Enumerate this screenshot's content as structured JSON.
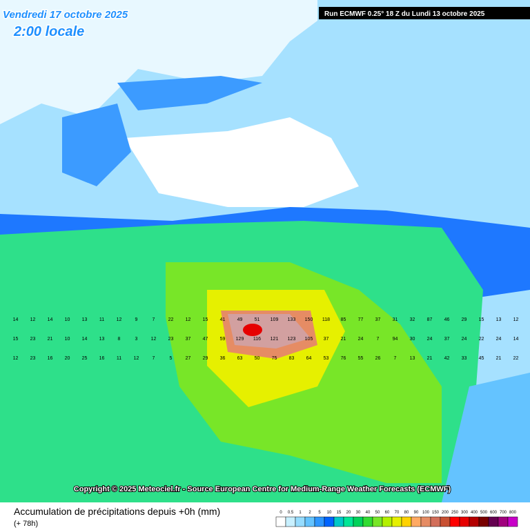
{
  "header": {
    "date": "Vendredi 17 octobre 2025",
    "local_time": "2:00 locale",
    "run": "Run ECMWF 0.25° 18 Z du Lundi 13 octobre 2025"
  },
  "copyright": "Copyright © 2025 Meteociel.fr - Source European Centre for Medium-Range Weather Forecasts (ECMWF)",
  "footer": {
    "title": "Accumulation de précipitations depuis +0h (mm)",
    "lead": "(+ 78h)"
  },
  "legend": {
    "labels": [
      0,
      0.5,
      1,
      2,
      5,
      10,
      15,
      20,
      30,
      40,
      50,
      60,
      70,
      80,
      90,
      100,
      150,
      200,
      250,
      300,
      400,
      500,
      600,
      700,
      800
    ],
    "colors": [
      "#ffffff",
      "#c8f0ff",
      "#96dcff",
      "#64c3ff",
      "#2d96ff",
      "#0064ff",
      "#00c8c8",
      "#00e696",
      "#00d25a",
      "#32dc32",
      "#78e628",
      "#b4f000",
      "#e6f000",
      "#ffd200",
      "#ffaa64",
      "#e68c64",
      "#d26e5a",
      "#c85032",
      "#ff0000",
      "#e60000",
      "#b40000",
      "#780000",
      "#640050",
      "#a0007d",
      "#c800c8"
    ]
  },
  "grid_values": [
    [
      14,
      12,
      14,
      10,
      13,
      11,
      12,
      9,
      7,
      22,
      12,
      15,
      41,
      49,
      51,
      109,
      133,
      150,
      118,
      85,
      77,
      37,
      31,
      32,
      87,
      46,
      29,
      15,
      13,
      12
    ],
    [
      15,
      23,
      21,
      10,
      14,
      13,
      8,
      3,
      12,
      23,
      37,
      47,
      59,
      129,
      116,
      121,
      123,
      105,
      37,
      21,
      24,
      7,
      94,
      30,
      24,
      37,
      24,
      22,
      24,
      14
    ],
    [
      12,
      23,
      16,
      20,
      25,
      16,
      11,
      12,
      7,
      5,
      27,
      29,
      36,
      63,
      50,
      75,
      83,
      64,
      53,
      76,
      55,
      26,
      7,
      13,
      21,
      42,
      33,
      45,
      21,
      22
    ]
  ]
}
